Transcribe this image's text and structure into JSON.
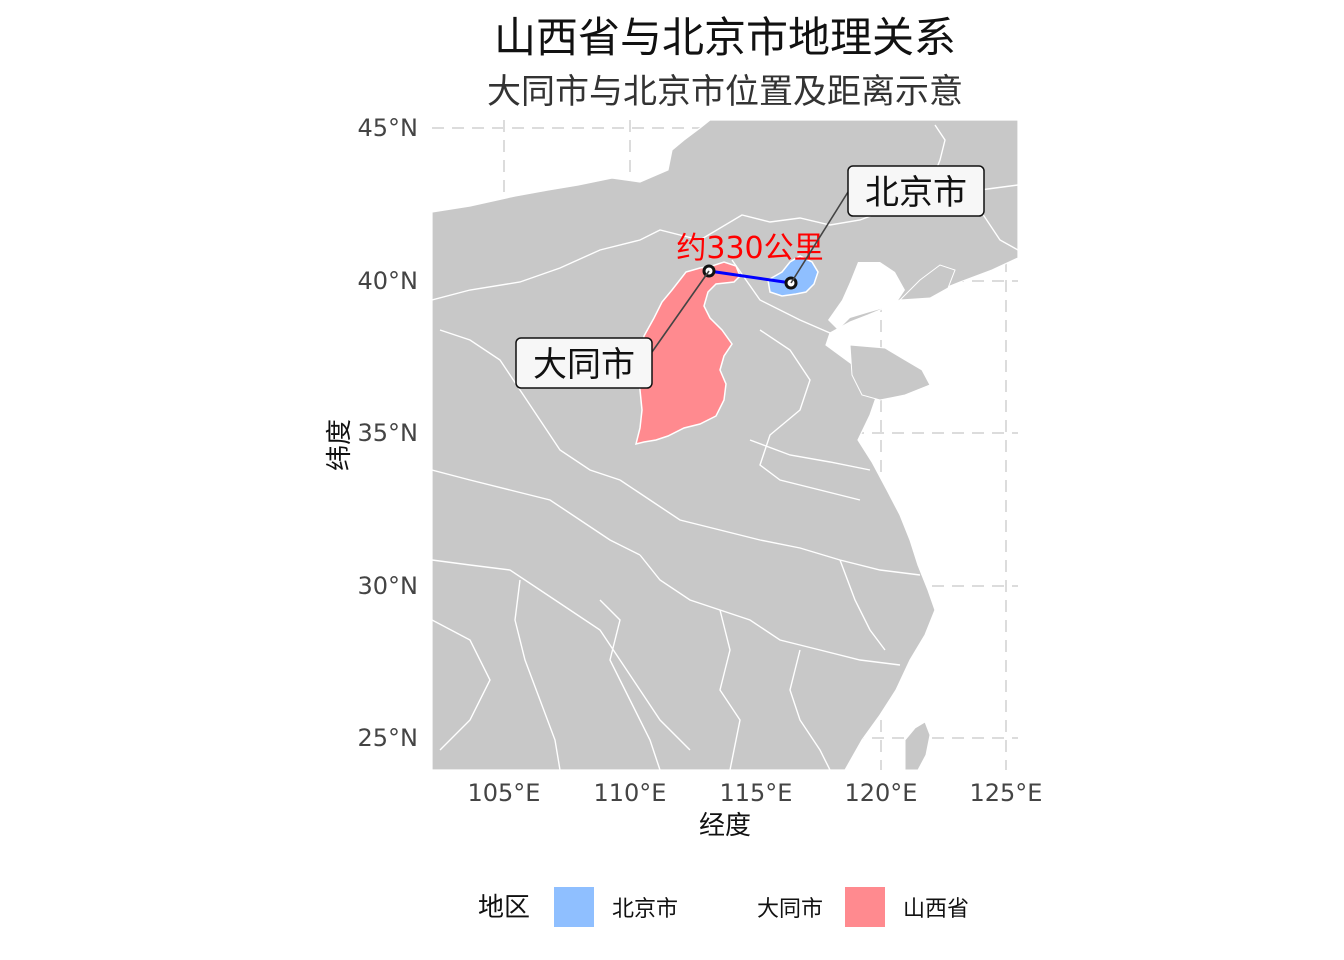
{
  "title": "山西省与北京市地理关系",
  "subtitle": "大同市与北京市位置及距离示意",
  "axes": {
    "x_label": "经度",
    "y_label": "纬度",
    "x_ticks": [
      "105°E",
      "110°E",
      "115°E",
      "120°E",
      "125°E"
    ],
    "y_ticks": [
      "45°N",
      "40°N",
      "35°N",
      "30°N",
      "25°N"
    ]
  },
  "map": {
    "background_color": "#c8c8c8",
    "border_color": "#ffffff",
    "regions": [
      {
        "name": "山西省",
        "color": "#ff8a8f"
      },
      {
        "name": "北京市",
        "color": "#8fbfff"
      }
    ]
  },
  "points": [
    {
      "label": "大同市",
      "lon": 113.3,
      "lat": 40.1
    },
    {
      "label": "北京市",
      "lon": 116.4,
      "lat": 39.9
    }
  ],
  "distance": {
    "label": "约330公里",
    "color": "#ff0000",
    "line_color": "#0000ff"
  },
  "legend": {
    "title": "地区",
    "items": [
      {
        "label": "北京市",
        "color": "#8fbfff"
      },
      {
        "label": "大同市",
        "color": null
      },
      {
        "label": "山西省",
        "color": "#ff8a8f"
      }
    ]
  }
}
